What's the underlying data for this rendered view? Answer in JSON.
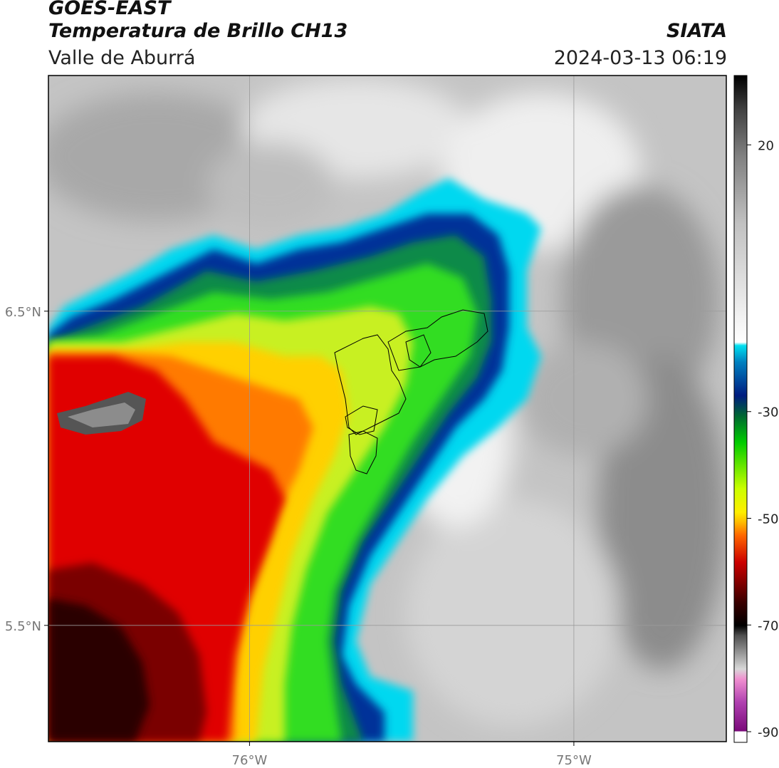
{
  "header": {
    "satellite": "GOES-EAST",
    "product": "Temperatura de Brillo CH13",
    "region": "Valle de Aburrá",
    "brand": "SIATA",
    "datetime": "2024-03-13 06:19"
  },
  "map": {
    "lon_range": [
      -76.62,
      -74.53
    ],
    "lat_range": [
      5.13,
      7.25
    ],
    "lon_ticks": [
      {
        "value": -76,
        "label": "76°W"
      },
      {
        "value": -75,
        "label": "75°W"
      }
    ],
    "lat_ticks": [
      {
        "value": 6.5,
        "label": "6.5°N"
      },
      {
        "value": 5.5,
        "label": "5.5°N"
      }
    ],
    "gridlines": true
  },
  "colorbar": {
    "min": -92,
    "max": 33,
    "ticks": [
      {
        "value": 20,
        "label": "20"
      },
      {
        "value": -30,
        "label": "-30"
      },
      {
        "value": -50,
        "label": "-50"
      },
      {
        "value": -70,
        "label": "-70"
      },
      {
        "value": -90,
        "label": "-90"
      }
    ]
  },
  "colors": {
    "frame": "#000000",
    "grid": "#9a9a9a",
    "outlines": "#000000"
  }
}
